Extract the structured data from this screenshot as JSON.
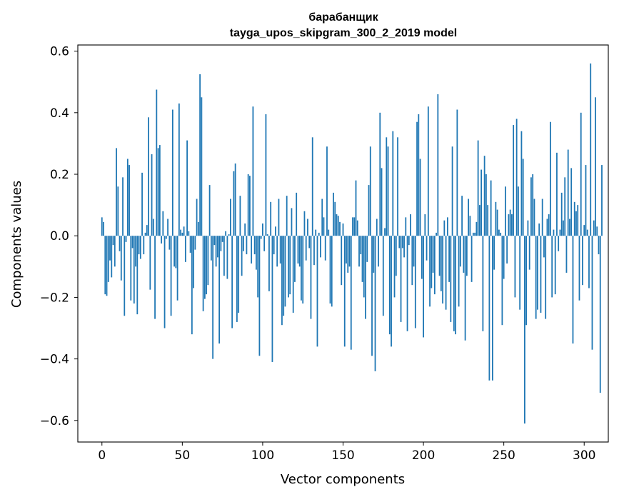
{
  "chart_data": {
    "type": "bar",
    "title": "барабанщик",
    "subtitle": "tayga_upos_skipgram_300_2_2019 model",
    "xlabel": "Vector components",
    "ylabel": "Components values",
    "xlim": [
      -15,
      315
    ],
    "ylim": [
      -0.67,
      0.62
    ],
    "xticks": [
      0,
      50,
      100,
      150,
      200,
      250,
      300
    ],
    "xtick_labels": [
      "0",
      "50",
      "100",
      "150",
      "200",
      "250",
      "300"
    ],
    "yticks": [
      -0.6,
      -0.4,
      -0.2,
      0.0,
      0.2,
      0.4,
      0.6
    ],
    "ytick_labels": [
      "−0.6",
      "−0.4",
      "−0.2",
      "0.0",
      "0.2",
      "0.4",
      "0.6"
    ],
    "grid": false,
    "bar_color": "#1f77b4",
    "values": [
      0.06,
      0.045,
      -0.19,
      -0.195,
      -0.15,
      -0.08,
      -0.135,
      -0.03,
      -0.1,
      0.285,
      0.16,
      -0.05,
      -0.145,
      0.19,
      -0.26,
      -0.02,
      0.25,
      0.23,
      -0.21,
      -0.04,
      -0.22,
      -0.1,
      -0.255,
      -0.06,
      -0.075,
      0.205,
      -0.06,
      0.01,
      0.035,
      0.385,
      -0.175,
      0.265,
      0.055,
      -0.27,
      0.475,
      0.285,
      0.295,
      -0.025,
      0.08,
      -0.3,
      -0.01,
      0.055,
      -0.045,
      -0.26,
      0.41,
      -0.1,
      -0.105,
      -0.21,
      0.43,
      0.02,
      0.01,
      0.03,
      -0.085,
      0.31,
      0.015,
      -0.055,
      -0.32,
      -0.17,
      -0.045,
      0.12,
      0.045,
      0.525,
      0.45,
      -0.245,
      -0.205,
      -0.19,
      -0.16,
      0.165,
      -0.08,
      -0.4,
      -0.03,
      -0.1,
      -0.07,
      -0.35,
      -0.05,
      -0.02,
      -0.13,
      0.015,
      -0.14,
      0.005,
      0.12,
      -0.3,
      0.21,
      0.235,
      -0.28,
      -0.25,
      0.13,
      -0.13,
      -0.05,
      0.04,
      -0.06,
      0.2,
      0.195,
      -0.09,
      0.42,
      -0.06,
      -0.11,
      -0.2,
      -0.39,
      -0.01,
      0.04,
      -0.05,
      0.395,
      0.005,
      -0.18,
      0.11,
      -0.41,
      -0.06,
      0.03,
      -0.1,
      0.12,
      -0.09,
      -0.29,
      -0.26,
      -0.23,
      0.13,
      -0.2,
      -0.19,
      0.09,
      -0.25,
      -0.15,
      0.14,
      -0.09,
      -0.1,
      -0.21,
      -0.22,
      0.08,
      -0.08,
      0.055,
      -0.04,
      -0.27,
      0.32,
      -0.095,
      0.02,
      -0.36,
      0.01,
      -0.07,
      0.12,
      0.06,
      -0.08,
      0.29,
      0.02,
      -0.22,
      -0.23,
      0.14,
      0.11,
      0.07,
      0.065,
      0.045,
      -0.16,
      0.04,
      -0.36,
      -0.09,
      -0.12,
      -0.1,
      -0.37,
      0.06,
      0.06,
      0.18,
      0.05,
      -0.1,
      -0.06,
      -0.15,
      -0.2,
      -0.27,
      -0.085,
      0.165,
      0.29,
      -0.39,
      -0.12,
      -0.44,
      0.055,
      -0.1,
      0.4,
      0.22,
      -0.26,
      0.025,
      0.32,
      0.29,
      -0.32,
      -0.36,
      0.34,
      -0.2,
      -0.13,
      0.32,
      -0.04,
      -0.28,
      -0.04,
      -0.07,
      0.06,
      -0.31,
      -0.03,
      0.07,
      -0.16,
      -0.1,
      -0.3,
      0.37,
      0.395,
      0.25,
      -0.14,
      -0.33,
      0.07,
      -0.08,
      0.42,
      -0.23,
      -0.17,
      -0.12,
      -0.19,
      0.01,
      0.46,
      -0.13,
      -0.18,
      -0.22,
      0.05,
      -0.24,
      0.06,
      -0.15,
      -0.28,
      0.29,
      -0.31,
      -0.32,
      0.41,
      -0.23,
      -0.1,
      0.13,
      -0.12,
      -0.34,
      -0.13,
      0.12,
      0.065,
      -0.15,
      0.01,
      0.01,
      0.045,
      0.31,
      0.1,
      0.215,
      -0.31,
      0.26,
      0.2,
      0.1,
      -0.47,
      0.18,
      -0.47,
      -0.11,
      0.11,
      0.085,
      0.02,
      0.01,
      -0.29,
      -0.14,
      0.16,
      -0.09,
      0.07,
      0.085,
      0.07,
      0.36,
      -0.2,
      0.38,
      0.16,
      -0.24,
      0.34,
      0.25,
      -0.61,
      -0.29,
      0.05,
      -0.11,
      0.19,
      0.2,
      0.12,
      -0.27,
      -0.24,
      0.04,
      -0.25,
      0.12,
      -0.07,
      -0.27,
      0.055,
      0.07,
      0.37,
      -0.2,
      0.02,
      -0.19,
      0.27,
      -0.05,
      0.02,
      0.14,
      0.05,
      0.19,
      -0.12,
      0.28,
      0.055,
      0.22,
      -0.35,
      0.11,
      0.08,
      0.1,
      -0.21,
      0.4,
      -0.16,
      0.035,
      0.23,
      0.02,
      -0.17,
      0.56,
      -0.37,
      0.05,
      0.45,
      0.03,
      -0.06,
      -0.51,
      0.23
    ]
  }
}
